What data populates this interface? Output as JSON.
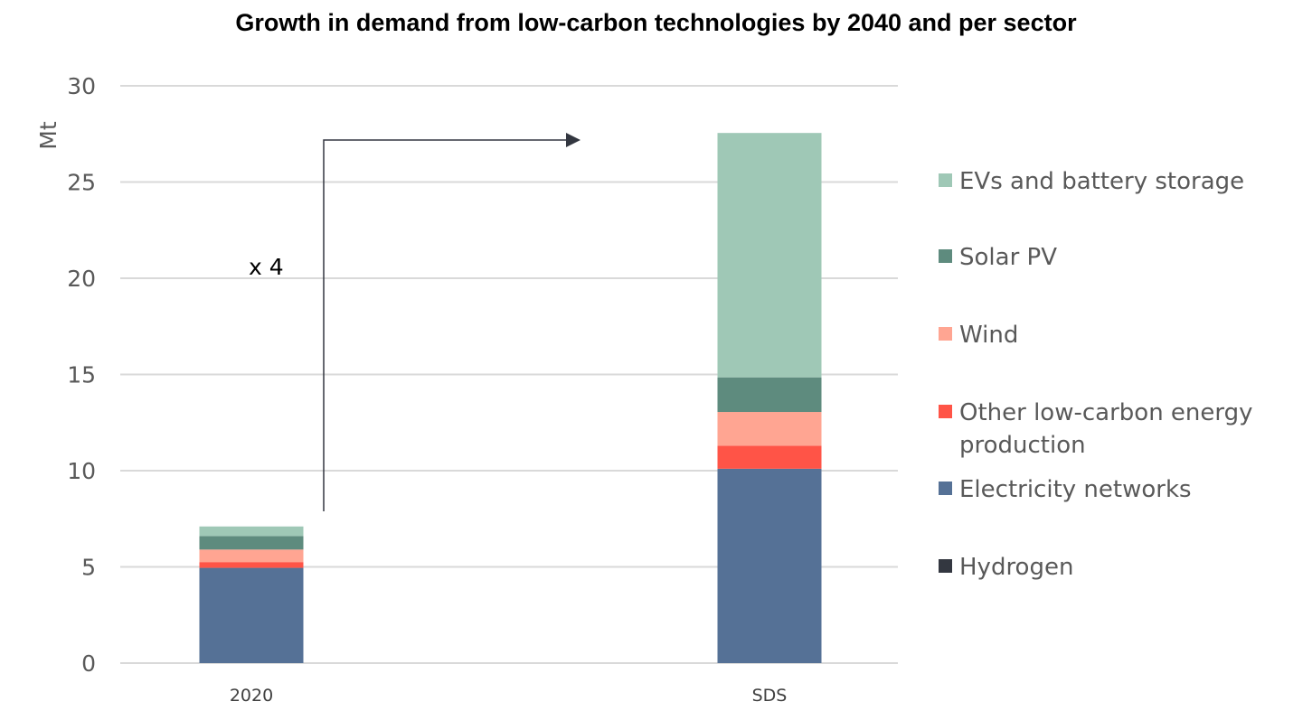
{
  "chart_data": {
    "type": "bar",
    "stacked": true,
    "title": "Growth in demand from low-carbon technologies by 2040 and per sector",
    "xlabel": "",
    "ylabel": "Mt",
    "ylim": [
      0,
      30
    ],
    "yticks": [
      "0",
      "5",
      "10",
      "15",
      "20",
      "25",
      "30"
    ],
    "grid": true,
    "legend_position": "right",
    "categories": [
      "2020",
      "SDS"
    ],
    "series": [
      {
        "name": "Hydrogen",
        "color": "#333740",
        "values": [
          0,
          0
        ]
      },
      {
        "name": "Electricity networks",
        "color": "#557196",
        "values": [
          4.95,
          10.1
        ]
      },
      {
        "name": "Other low-carbon energy production",
        "color": "#FF5447",
        "values": [
          0.3,
          1.2
        ]
      },
      {
        "name": "Wind",
        "color": "#FFA592",
        "values": [
          0.65,
          1.75
        ]
      },
      {
        "name": "Solar PV",
        "color": "#5E8B7E",
        "values": [
          0.7,
          1.8
        ]
      },
      {
        "name": "EVs and battery storage",
        "color": "#9FC8B6",
        "values": [
          0.5,
          12.7
        ]
      }
    ],
    "legend_order": [
      "EVs and battery storage",
      "Solar PV",
      "Wind",
      "Other low-carbon energy production",
      "Electricity networks",
      "Hydrogen"
    ],
    "legend_lines": [
      [
        "EVs and battery storage"
      ],
      [
        "Solar PV"
      ],
      [
        "Wind"
      ],
      [
        "Other low-carbon energy",
        "production"
      ],
      [
        "Electricity networks"
      ],
      [
        "Hydrogen"
      ]
    ],
    "annotation": "x 4"
  }
}
